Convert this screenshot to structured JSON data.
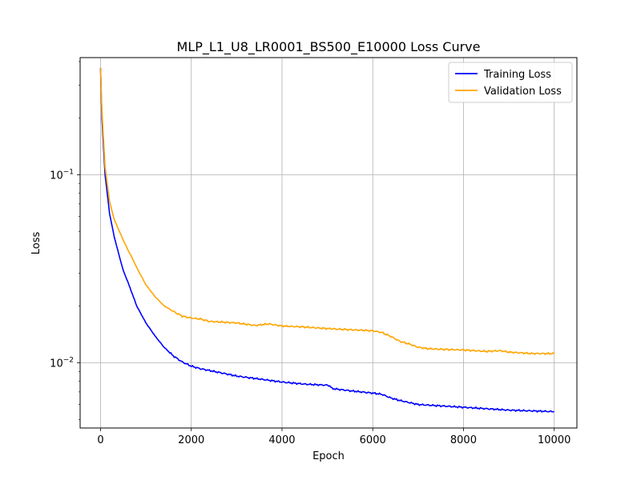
{
  "chart_data": {
    "type": "line",
    "title": "MLP_L1_U8_LR0001_BS500_E10000 Loss Curve",
    "xlabel": "Epoch",
    "ylabel": "Loss",
    "xlim": [
      -450,
      10500
    ],
    "ylim": [
      0.0045,
      0.42
    ],
    "yscale": "log",
    "grid": true,
    "legend_position": "top-right",
    "x_ticks": [
      0,
      2000,
      4000,
      6000,
      8000,
      10000
    ],
    "x_tick_labels": [
      "0",
      "2000",
      "4000",
      "6000",
      "8000",
      "10000"
    ],
    "y_ticks": [
      0.1,
      0.01
    ],
    "y_tick_labels": [
      {
        "base": "10",
        "exp": "−1"
      },
      {
        "base": "10",
        "exp": "−2"
      }
    ],
    "series": [
      {
        "name": "Training Loss",
        "color": "#0000ff",
        "x": [
          0,
          30,
          100,
          200,
          300,
          400,
          500,
          600,
          800,
          1000,
          1200,
          1400,
          1600,
          1800,
          2000,
          2200,
          2400,
          2600,
          2800,
          3000,
          3500,
          4000,
          4500,
          5000,
          5050,
          5100,
          5500,
          6000,
          6200,
          6400,
          6600,
          7000,
          7500,
          8000,
          8500,
          9000,
          9500,
          10000
        ],
        "y": [
          0.37,
          0.2,
          0.1,
          0.062,
          0.047,
          0.038,
          0.031,
          0.027,
          0.02,
          0.0163,
          0.0139,
          0.0121,
          0.0109,
          0.0101,
          0.0096,
          0.0093,
          0.0091,
          0.0089,
          0.0087,
          0.0085,
          0.0082,
          0.0079,
          0.0077,
          0.0076,
          0.00755,
          0.0073,
          0.0071,
          0.0069,
          0.0068,
          0.0065,
          0.0063,
          0.006,
          0.0059,
          0.0058,
          0.0057,
          0.0056,
          0.00555,
          0.0055
        ]
      },
      {
        "name": "Validation Loss",
        "color": "#ffa500",
        "x": [
          0,
          30,
          100,
          200,
          300,
          400,
          500,
          600,
          700,
          800,
          1000,
          1200,
          1400,
          1600,
          1800,
          2000,
          2200,
          2400,
          2600,
          3000,
          3400,
          3700,
          4000,
          4500,
          5000,
          5500,
          6000,
          6200,
          6400,
          6600,
          6800,
          7000,
          7200,
          7500,
          8000,
          8500,
          8800,
          9000,
          9500,
          10000
        ],
        "y": [
          0.37,
          0.22,
          0.11,
          0.072,
          0.058,
          0.051,
          0.045,
          0.04,
          0.036,
          0.032,
          0.026,
          0.0225,
          0.0201,
          0.0188,
          0.0177,
          0.0173,
          0.0171,
          0.0166,
          0.0165,
          0.0163,
          0.0158,
          0.0161,
          0.0157,
          0.0155,
          0.0152,
          0.015,
          0.0148,
          0.0145,
          0.0138,
          0.013,
          0.0126,
          0.0121,
          0.0119,
          0.0118,
          0.0117,
          0.0115,
          0.0116,
          0.0114,
          0.0112,
          0.0112
        ]
      }
    ]
  }
}
